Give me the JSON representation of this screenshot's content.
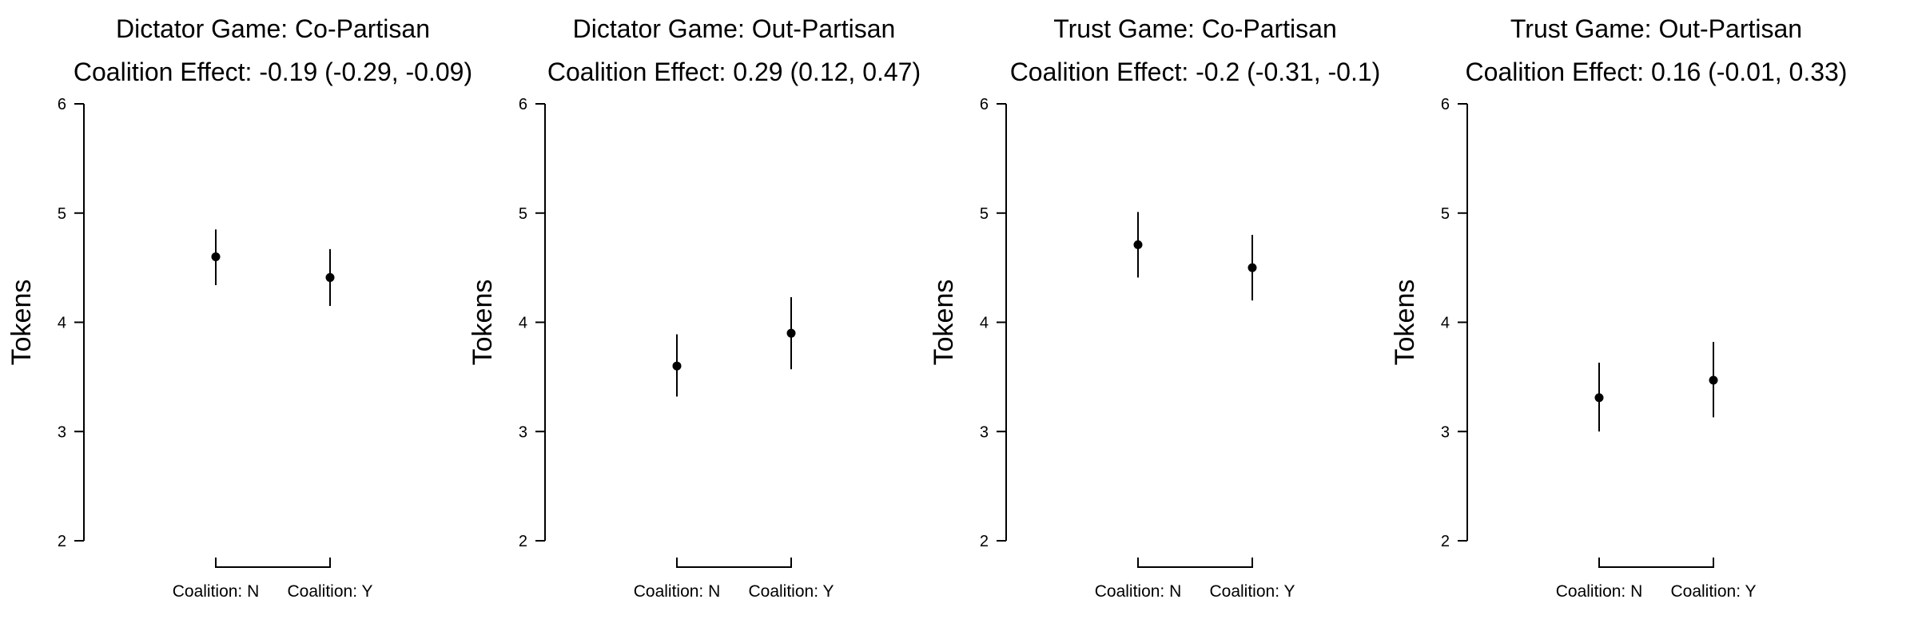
{
  "chart_data": [
    {
      "type": "scatter",
      "title": "Dictator Game: Co-Partisan",
      "subtitle": "Coalition Effect: -0.19 (-0.29, -0.09)",
      "ylabel": "Tokens",
      "ylim": [
        2,
        6
      ],
      "yticks": [
        "2",
        "3",
        "4",
        "5",
        "6"
      ],
      "categories": [
        "Coalition: N",
        "Coalition: Y"
      ],
      "series": [
        {
          "values": [
            4.6,
            4.41
          ],
          "ci_low": [
            4.34,
            4.15
          ],
          "ci_high": [
            4.85,
            4.67
          ]
        }
      ],
      "grid": false,
      "error_bars": true
    },
    {
      "type": "scatter",
      "title": "Dictator Game: Out-Partisan",
      "subtitle": "Coalition Effect: 0.29 (0.12, 0.47)",
      "ylabel": "Tokens",
      "ylim": [
        2,
        6
      ],
      "yticks": [
        "2",
        "3",
        "4",
        "5",
        "6"
      ],
      "categories": [
        "Coalition: N",
        "Coalition: Y"
      ],
      "series": [
        {
          "values": [
            3.6,
            3.9
          ],
          "ci_low": [
            3.32,
            3.57
          ],
          "ci_high": [
            3.89,
            4.23
          ]
        }
      ],
      "grid": false,
      "error_bars": true
    },
    {
      "type": "scatter",
      "title": "Trust Game: Co-Partisan",
      "subtitle": "Coalition Effect: -0.2 (-0.31, -0.1)",
      "ylabel": "Tokens",
      "ylim": [
        2,
        6
      ],
      "yticks": [
        "2",
        "3",
        "4",
        "5",
        "6"
      ],
      "categories": [
        "Coalition: N",
        "Coalition: Y"
      ],
      "series": [
        {
          "values": [
            4.71,
            4.5
          ],
          "ci_low": [
            4.41,
            4.2
          ],
          "ci_high": [
            5.01,
            4.8
          ]
        }
      ],
      "grid": false,
      "error_bars": true
    },
    {
      "type": "scatter",
      "title": "Trust Game: Out-Partisan",
      "subtitle": "Coalition Effect: 0.16 (-0.01, 0.33)",
      "ylabel": "Tokens",
      "ylim": [
        2,
        6
      ],
      "yticks": [
        "2",
        "3",
        "4",
        "5",
        "6"
      ],
      "categories": [
        "Coalition: N",
        "Coalition: Y"
      ],
      "series": [
        {
          "values": [
            3.31,
            3.47
          ],
          "ci_low": [
            3.0,
            3.13
          ],
          "ci_high": [
            3.63,
            3.82
          ]
        }
      ],
      "grid": false,
      "error_bars": true
    }
  ]
}
